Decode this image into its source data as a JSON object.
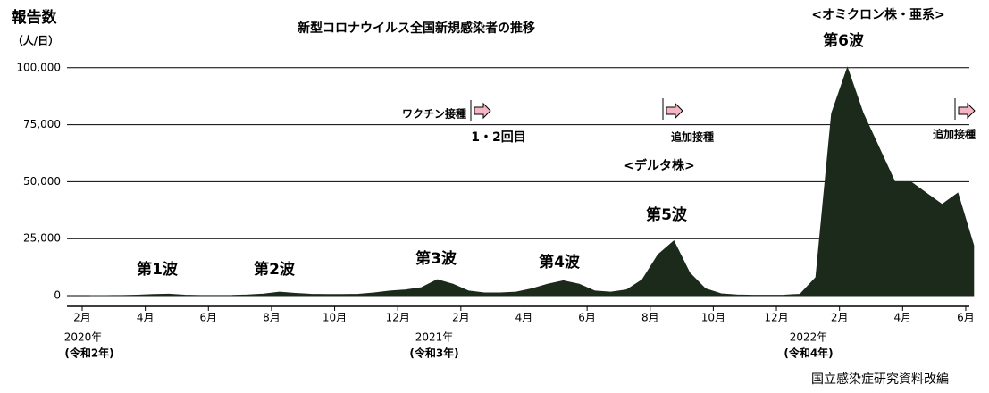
{
  "chart_data": {
    "type": "area",
    "title": "新型コロナウイルス全国新規感染者の推移",
    "y_label": [
      "報告数",
      "（人/日）"
    ],
    "source": "国立感染症研究資料改編",
    "color": "#1c2a1c",
    "categories": [
      "2月",
      null,
      null,
      null,
      "4月",
      null,
      null,
      null,
      "6月",
      null,
      null,
      null,
      "8月",
      null,
      null,
      null,
      "10月",
      null,
      null,
      null,
      "12月",
      null,
      null,
      null,
      "2月",
      null,
      null,
      null,
      "4月",
      null,
      null,
      null,
      "6月",
      null,
      null,
      null,
      "8月",
      null,
      null,
      null,
      "10月",
      null,
      null,
      null,
      "12月",
      null,
      null,
      null,
      "2月",
      null,
      null,
      null,
      "4月",
      null,
      null,
      null,
      "6月"
    ],
    "values": [
      0,
      10,
      50,
      200,
      500,
      650,
      200,
      50,
      50,
      80,
      300,
      700,
      1500,
      1000,
      600,
      500,
      500,
      600,
      1200,
      2000,
      2500,
      3500,
      7000,
      5000,
      2000,
      1200,
      1200,
      1500,
      3000,
      5000,
      6500,
      5000,
      2000,
      1500,
      2500,
      7000,
      18000,
      24000,
      10000,
      3000,
      800,
      300,
      150,
      150,
      200,
      600,
      8000,
      80000,
      100000,
      80000,
      65000,
      50000,
      50000,
      45000,
      40000,
      45000,
      22000
    ],
    "year_labels": [
      [
        "2020年",
        "(令和2年)"
      ],
      [
        "2021年",
        "(令和3年)"
      ],
      [
        "2022年",
        "(令和4年)"
      ]
    ],
    "annotations": [
      "第1波",
      "第2波",
      "第3波",
      "第4波",
      "第5波",
      "<デルタ株>",
      "第6波",
      "<オミクロン株・亜系>",
      "ワクチン接種",
      "1・2回目",
      "追加接種",
      "追加接種"
    ],
    "ylim": [
      -4700,
      105000
    ],
    "yticks": [
      0,
      {
        "value": 25000,
        "label": "25,000"
      },
      {
        "value": 50000,
        "label": "50,000"
      },
      {
        "value": 75000,
        "label": "75,000"
      },
      {
        "value": 100000,
        "label": "100,000"
      }
    ],
    "grid": true
  }
}
